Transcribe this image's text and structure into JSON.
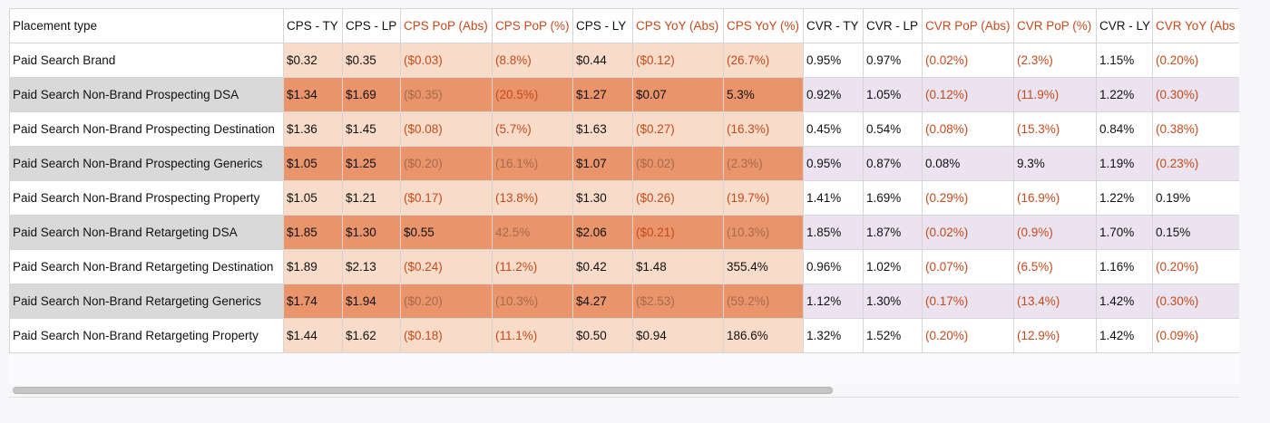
{
  "headers": [
    {
      "label": "Placement type",
      "color": "#111111"
    },
    {
      "label": "CPS - TY",
      "color": "#111111"
    },
    {
      "label": "CPS - LP",
      "color": "#111111"
    },
    {
      "label": "CPS PoP (Abs)",
      "color": "#c54a1b"
    },
    {
      "label": "CPS PoP (%)",
      "color": "#c54a1b"
    },
    {
      "label": "CPS - LY",
      "color": "#111111"
    },
    {
      "label": "CPS YoY (Abs)",
      "color": "#c54a1b"
    },
    {
      "label": "CPS YoY (%)",
      "color": "#c54a1b"
    },
    {
      "label": "CVR - TY",
      "color": "#111111"
    },
    {
      "label": "CVR - LP",
      "color": "#111111"
    },
    {
      "label": "CVR PoP (Abs)",
      "color": "#c54a1b"
    },
    {
      "label": "CVR PoP (%)",
      "color": "#c54a1b"
    },
    {
      "label": "CVR - LY",
      "color": "#111111"
    },
    {
      "label": "CVR YoY (Abs",
      "color": "#c54a1b"
    }
  ],
  "rows": [
    [
      "Paid Search Brand",
      "$0.32",
      "$0.35",
      "($0.03)",
      "(8.8%)",
      "$0.44",
      "($0.12)",
      "(26.7%)",
      "0.95%",
      "0.97%",
      "(0.02%)",
      "(2.3%)",
      "1.15%",
      "(0.20%)"
    ],
    [
      "Paid Search Non-Brand Prospecting DSA",
      "$1.34",
      "$1.69",
      "($0.35)",
      "(20.5%)",
      "$1.27",
      "$0.07",
      "5.3%",
      "0.92%",
      "1.05%",
      "(0.12%)",
      "(11.9%)",
      "1.22%",
      "(0.30%)"
    ],
    [
      "Paid Search Non-Brand Prospecting Destination",
      "$1.36",
      "$1.45",
      "($0.08)",
      "(5.7%)",
      "$1.63",
      "($0.27)",
      "(16.3%)",
      "0.45%",
      "0.54%",
      "(0.08%)",
      "(15.3%)",
      "0.84%",
      "(0.38%)"
    ],
    [
      "Paid Search Non-Brand Prospecting Generics",
      "$1.05",
      "$1.25",
      "($0.20)",
      "(16.1%)",
      "$1.07",
      "($0.02)",
      "(2.3%)",
      "0.95%",
      "0.87%",
      "0.08%",
      "9.3%",
      "1.19%",
      "(0.23%)"
    ],
    [
      "Paid Search Non-Brand Prospecting Property",
      "$1.05",
      "$1.21",
      "($0.17)",
      "(13.8%)",
      "$1.30",
      "($0.26)",
      "(19.7%)",
      "1.41%",
      "1.69%",
      "(0.29%)",
      "(16.9%)",
      "1.22%",
      "0.19%"
    ],
    [
      "Paid Search Non-Brand Retargeting DSA",
      "$1.85",
      "$1.30",
      "$0.55",
      "42.5%",
      "$2.06",
      "($0.21)",
      "(10.3%)",
      "1.85%",
      "1.87%",
      "(0.02%)",
      "(0.9%)",
      "1.70%",
      "0.15%"
    ],
    [
      "Paid Search Non-Brand Retargeting Destination",
      "$1.89",
      "$2.13",
      "($0.24)",
      "(11.2%)",
      "$0.42",
      "$1.48",
      "355.4%",
      "0.96%",
      "1.02%",
      "(0.07%)",
      "(6.5%)",
      "1.16%",
      "(0.20%)"
    ],
    [
      "Paid Search Non-Brand Retargeting Generics",
      "$1.74",
      "$1.94",
      "($0.20)",
      "(10.3%)",
      "$4.27",
      "($2.53)",
      "(59.2%)",
      "1.12%",
      "1.30%",
      "(0.17%)",
      "(13.4%)",
      "1.42%",
      "(0.30%)"
    ],
    [
      "Paid Search Non-Brand Retargeting Property",
      "$1.44",
      "$1.62",
      "($0.18)",
      "(11.1%)",
      "$0.50",
      "$0.94",
      "186.6%",
      "1.32%",
      "1.52%",
      "(0.20%)",
      "(12.9%)",
      "1.42%",
      "(0.09%)"
    ]
  ],
  "scrollbar": {
    "position": 0
  }
}
